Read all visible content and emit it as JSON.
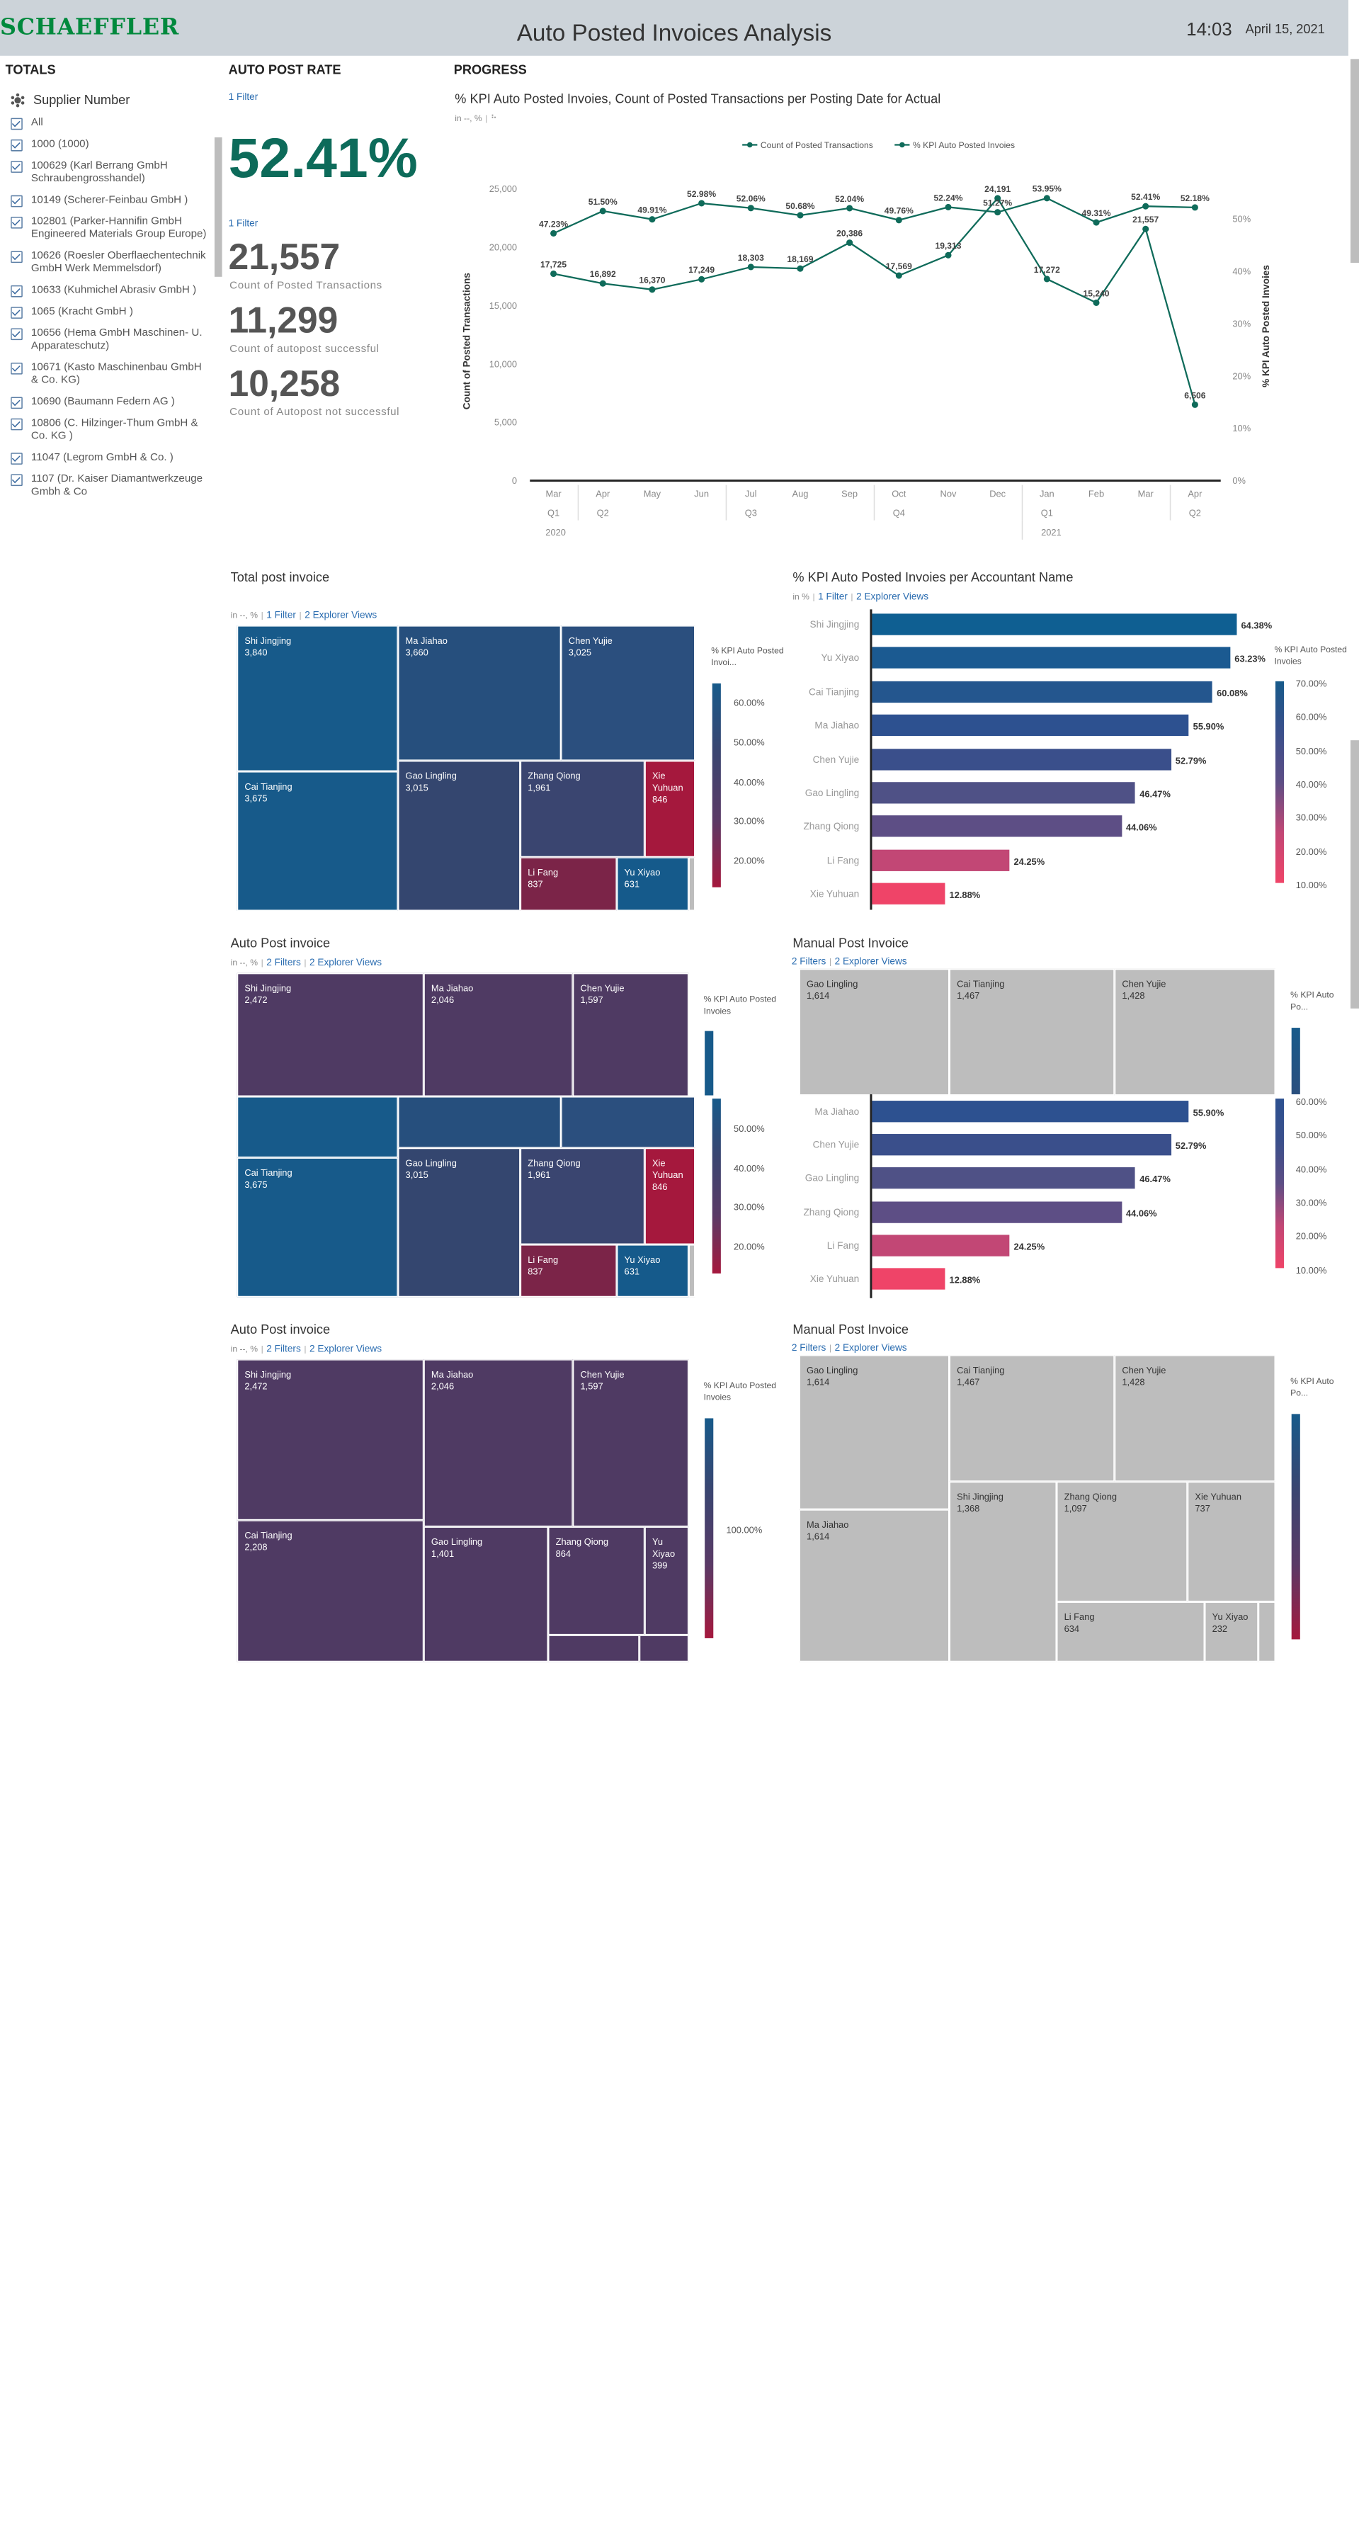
{
  "header": {
    "logo": "SCHAEFFLER",
    "title": "Auto Posted Invoices Analysis",
    "time": "14:03",
    "date": "April 15, 2021"
  },
  "sections": {
    "totals": "TOTALS",
    "auto_post_rate": "AUTO POST RATE",
    "progress": "PROGRESS"
  },
  "supplier_filter": {
    "title": "Supplier Number",
    "items": [
      "All",
      "1000 (1000)",
      "100629 (Karl Berrang GmbH Schraubengrosshandel)",
      "10149 (Scherer-Feinbau GmbH )",
      "102801 (Parker-Hannifin GmbH Engineered Materials Group Europe)",
      "10626 (Roesler Oberflaechentechnik GmbH Werk Memmelsdorf)",
      "10633 (Kuhmichel Abrasiv GmbH )",
      "1065 (Kracht GmbH )",
      "10656 (Hema GmbH Maschinen- U. Apparateschutz)",
      "10671 (Kasto Maschinenbau GmbH & Co. KG)",
      "10690 (Baumann Federn AG )",
      "10806 (C. Hilzinger-Thum GmbH & Co. KG )",
      "11047 (Legrom GmbH & Co. )",
      "1107 (Dr. Kaiser Diamantwerkzeuge Gmbh & Co"
    ]
  },
  "kpi": {
    "filter1": "1 Filter",
    "rate": "52.41%",
    "filter2": "1 Filter",
    "posted": "21,557",
    "posted_label": "Count of Posted Transactions",
    "success": "11,299",
    "success_label": "Count of autopost successful",
    "fail": "10,258",
    "fail_label": "Count of Autopost not successful"
  },
  "line_chart": {
    "title": "% KPI Auto Posted Invoies, Count of Posted Transactions per Posting Date for Actual",
    "sub": "in --, %",
    "legend": [
      "Count of Posted Transactions",
      "% KPI Auto Posted Invoies"
    ],
    "ylabel_left": "Count of Posted Transactions",
    "ylabel_right": "% KPI Auto Posted Invoies",
    "color": "#0f6b5a"
  },
  "chart_data": [
    {
      "type": "line",
      "title": "% KPI Auto Posted Invoies, Count of Posted Transactions per Posting Date for Actual",
      "x": [
        "Mar",
        "Apr",
        "May",
        "Jun",
        "Jul",
        "Aug",
        "Sep",
        "Oct",
        "Nov",
        "Dec",
        "Jan",
        "Feb",
        "Mar",
        "Apr"
      ],
      "quarters": [
        "Q1",
        "Q2",
        "",
        "",
        "Q3",
        "",
        "",
        "Q4",
        "",
        "",
        "Q1",
        "",
        "",
        "Q2"
      ],
      "years": [
        "2020",
        "2021"
      ],
      "series": [
        {
          "name": "Count of Posted Transactions",
          "axis": "left",
          "values": [
            17725,
            16892,
            16370,
            17249,
            18303,
            18169,
            20386,
            17569,
            19313,
            24191,
            17272,
            15240,
            21557,
            6506
          ],
          "labels": [
            "17,725",
            "16,892",
            "16,370",
            "17,249",
            "18,303",
            "18,169",
            "20,386",
            "17,569",
            "19,313",
            "24,191",
            "17,272",
            "15,240",
            "21,557",
            "6,506"
          ]
        },
        {
          "name": "% KPI Auto Posted Invoies",
          "axis": "right",
          "values": [
            47.23,
            51.5,
            49.91,
            52.98,
            52.06,
            50.68,
            52.04,
            49.76,
            52.24,
            51.27,
            53.95,
            49.31,
            52.41,
            52.18
          ],
          "labels": [
            "47.23%",
            "51.50%",
            "49.91%",
            "52.98%",
            "52.06%",
            "50.68%",
            "52.04%",
            "49.76%",
            "52.24%",
            "51.27%",
            "53.95%",
            "49.31%",
            "52.41%",
            "52.18%"
          ]
        }
      ],
      "ylim_left": [
        0,
        25000
      ],
      "yticks_left": [
        "0",
        "5,000",
        "10,000",
        "15,000",
        "20,000",
        "25,000"
      ],
      "ylim_right": [
        0,
        50
      ],
      "yticks_right": [
        "0%",
        "10%",
        "20%",
        "30%",
        "40%",
        "50%"
      ]
    },
    {
      "type": "bar",
      "title": "% KPI Auto Posted Invoies per Accountant Name",
      "categories": [
        "Shi Jingjing",
        "Yu Xiyao",
        "Cai Tianjing",
        "Ma Jiahao",
        "Chen Yujie",
        "Gao Lingling",
        "Zhang Qiong",
        "Li Fang",
        "Xie Yuhuan"
      ],
      "values": [
        64.38,
        63.23,
        60.08,
        55.9,
        52.79,
        46.47,
        44.06,
        24.25,
        12.88
      ],
      "labels": [
        "64.38%",
        "63.23%",
        "60.08%",
        "55.90%",
        "52.79%",
        "46.47%",
        "44.06%",
        "24.25%",
        "12.88%"
      ],
      "colors": [
        "#0f5f92",
        "#1b5a91",
        "#24568e",
        "#2d5190",
        "#3a4f8b",
        "#4f5186",
        "#5d4e85",
        "#c24775",
        "#ef4468"
      ],
      "color_legend": [
        "70.00%",
        "60.00%",
        "50.00%",
        "40.00%",
        "30.00%",
        "20.00%",
        "10.00%"
      ]
    }
  ],
  "treemap_total": {
    "title": "Total post invoice",
    "sub": "in --, %",
    "filters": "1 Filter",
    "views": "2 Explorer Views",
    "legend_title": "% KPI Auto Posted Invoi...",
    "legend_ticks": [
      "60.00%",
      "50.00%",
      "40.00%",
      "30.00%",
      "20.00%"
    ],
    "cells": [
      {
        "name": "Shi Jingjing",
        "value": "3,840"
      },
      {
        "name": "Ma Jiahao",
        "value": "3,660"
      },
      {
        "name": "Chen Yujie",
        "value": "3,025"
      },
      {
        "name": "Cai Tianjing",
        "value": "3,675"
      },
      {
        "name": "Gao Lingling",
        "value": "3,015"
      },
      {
        "name": "Zhang Qiong",
        "value": "1,961"
      },
      {
        "name": "Xie Yuhuan",
        "value": "846"
      },
      {
        "name": "Li Fang",
        "value": "837"
      },
      {
        "name": "Yu Xiyao",
        "value": "631"
      }
    ]
  },
  "bar_sub": {
    "sub": "in %",
    "filters": "1 Filter",
    "views": "2 Explorer Views",
    "legend_title": "% KPI Auto Posted Invoies"
  },
  "auto_post_1": {
    "title": "Auto Post invoice",
    "sub": "in --, %",
    "filters": "2 Filters",
    "views": "2 Explorer Views",
    "legend_title": "% KPI Auto Posted Invoies",
    "legend_ticks": [
      "50.00%",
      "40.00%",
      "30.00%",
      "20.00%"
    ],
    "cells_top": [
      {
        "name": "Shi Jingjing",
        "value": "2,472"
      },
      {
        "name": "Ma Jiahao",
        "value": "2,046"
      },
      {
        "name": "Chen Yujie",
        "value": "1,597"
      }
    ],
    "cells": [
      {
        "name": "Cai Tianjing",
        "value": "3,675"
      },
      {
        "name": "Gao Lingling",
        "value": "3,015"
      },
      {
        "name": "Zhang Qiong",
        "value": "1,961"
      },
      {
        "name": "Xie Yuhuan",
        "value": "846"
      },
      {
        "name": "Li Fang",
        "value": "837"
      },
      {
        "name": "Yu Xiyao",
        "value": "631"
      }
    ]
  },
  "manual_post_1": {
    "title": "Manual Post Invoice",
    "filters": "2 Filters",
    "views": "2 Explorer Views",
    "legend_title": "% KPI Auto Po...",
    "cells": [
      {
        "name": "Gao Lingling",
        "value": "1,614"
      },
      {
        "name": "Cai Tianjing",
        "value": "1,467"
      },
      {
        "name": "Chen Yujie",
        "value": "1,428"
      }
    ],
    "bars": [
      {
        "name": "Ma Jiahao",
        "label": "55.90%",
        "value": 55.9,
        "color": "#2d5190"
      },
      {
        "name": "Chen Yujie",
        "label": "52.79%",
        "value": 52.79,
        "color": "#3a4f8b"
      },
      {
        "name": "Gao Lingling",
        "label": "46.47%",
        "value": 46.47,
        "color": "#4f5186"
      },
      {
        "name": "Zhang Qiong",
        "label": "44.06%",
        "value": 44.06,
        "color": "#5d4e85"
      },
      {
        "name": "Li Fang",
        "label": "24.25%",
        "value": 24.25,
        "color": "#c24775"
      },
      {
        "name": "Xie Yuhuan",
        "label": "12.88%",
        "value": 12.88,
        "color": "#ef4468"
      }
    ],
    "legend_ticks": [
      "60.00%",
      "50.00%",
      "40.00%",
      "30.00%",
      "20.00%",
      "10.00%"
    ]
  },
  "auto_post_2": {
    "title": "Auto Post invoice",
    "sub": "in --, %",
    "filters": "2 Filters",
    "views": "2 Explorer Views",
    "legend_title": "% KPI Auto Posted Invoies",
    "legend_tick": "100.00%",
    "cells": [
      {
        "name": "Shi Jingjing",
        "value": "2,472"
      },
      {
        "name": "Ma Jiahao",
        "value": "2,046"
      },
      {
        "name": "Chen Yujie",
        "value": "1,597"
      },
      {
        "name": "Cai Tianjing",
        "value": "2,208"
      },
      {
        "name": "Gao Lingling",
        "value": "1,401"
      },
      {
        "name": "Zhang Qiong",
        "value": "864"
      },
      {
        "name": "Yu Xiyao",
        "value": "399"
      }
    ]
  },
  "manual_post_2": {
    "title": "Manual Post Invoice",
    "filters": "2 Filters",
    "views": "2 Explorer Views",
    "legend_title": "% KPI Auto Po...",
    "cells": [
      {
        "name": "Gao Lingling",
        "value": "1,614"
      },
      {
        "name": "Cai Tianjing",
        "value": "1,467"
      },
      {
        "name": "Chen Yujie",
        "value": "1,428"
      },
      {
        "name": "Ma Jiahao",
        "value": "1,614"
      },
      {
        "name": "Shi Jingjing",
        "value": "1,368"
      },
      {
        "name": "Zhang Qiong",
        "value": "1,097"
      },
      {
        "name": "Xie Yuhuan",
        "value": "737"
      },
      {
        "name": "Li Fang",
        "value": "634"
      },
      {
        "name": "Yu Xiyao",
        "value": "232"
      }
    ]
  },
  "colors": {
    "teal": "#0f6b5a",
    "treemap_blue": "#175a8a",
    "treemap_navy": "#2b4f7e",
    "treemap_slate": "#3a4570",
    "treemap_purple": "#4f3a63",
    "treemap_red": "#a5183d",
    "treemap_maroon": "#7b2448",
    "manual_gray": "#bdbdbd",
    "logo_green": "#00893d"
  }
}
